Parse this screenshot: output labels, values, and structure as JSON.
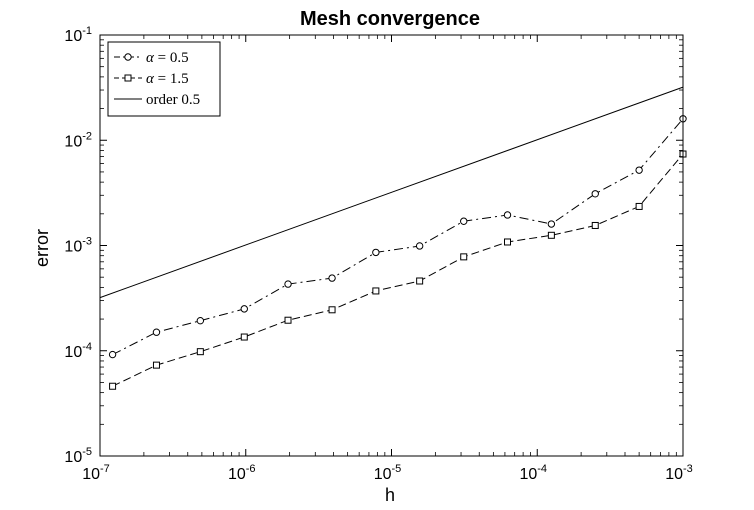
{
  "chart_data": {
    "type": "line",
    "title": "Mesh convergence",
    "xlabel": "h",
    "ylabel": "error",
    "xscale": "log",
    "yscale": "log",
    "xlim": [
      1e-07,
      0.001
    ],
    "ylim": [
      1e-05,
      0.1
    ],
    "x_ticks": [
      {
        "base": "10",
        "exp": "-7",
        "value": 1e-07
      },
      {
        "base": "10",
        "exp": "-6",
        "value": 1e-06
      },
      {
        "base": "10",
        "exp": "-5",
        "value": 1e-05
      },
      {
        "base": "10",
        "exp": "-4",
        "value": 0.0001
      },
      {
        "base": "10",
        "exp": "-3",
        "value": 0.001
      }
    ],
    "y_ticks": [
      {
        "base": "10",
        "exp": "-5",
        "value": 1e-05
      },
      {
        "base": "10",
        "exp": "-4",
        "value": 0.0001
      },
      {
        "base": "10",
        "exp": "-3",
        "value": 0.001
      },
      {
        "base": "10",
        "exp": "-2",
        "value": 0.01
      },
      {
        "base": "10",
        "exp": "-1",
        "value": 0.1
      }
    ],
    "grid": false,
    "legend_position": "top-left",
    "series": [
      {
        "name": "α = 0.5",
        "name_prefix": "α",
        "name_value": "= 0.5",
        "marker": "circle",
        "line": "dash-dot",
        "color": "#000000",
        "x": [
          1.22e-07,
          2.44e-07,
          4.88e-07,
          9.77e-07,
          1.95e-06,
          3.91e-06,
          7.81e-06,
          1.56e-05,
          3.13e-05,
          6.25e-05,
          0.000125,
          0.00025,
          0.0005,
          0.001
        ],
        "y": [
          9.2e-05,
          0.00015,
          0.000193,
          0.00025,
          0.00043,
          0.00049,
          0.00086,
          0.00099,
          0.0017,
          0.00195,
          0.0016,
          0.0031,
          0.0052,
          0.016
        ]
      },
      {
        "name": "α = 1.5",
        "name_prefix": "α",
        "name_value": "= 1.5",
        "marker": "square",
        "line": "dashed",
        "color": "#000000",
        "x": [
          1.22e-07,
          2.44e-07,
          4.88e-07,
          9.77e-07,
          1.95e-06,
          3.91e-06,
          7.81e-06,
          1.56e-05,
          3.13e-05,
          6.25e-05,
          0.000125,
          0.00025,
          0.0005,
          0.001
        ],
        "y": [
          4.6e-05,
          7.3e-05,
          9.8e-05,
          0.000135,
          0.000195,
          0.000245,
          0.00037,
          0.00046,
          0.00078,
          0.00108,
          0.00125,
          0.00155,
          0.00235,
          0.0074
        ]
      },
      {
        "name": "order 0.5",
        "marker": "none",
        "line": "solid",
        "color": "#000000",
        "x": [
          1e-07,
          0.001
        ],
        "y": [
          0.00032,
          0.032
        ]
      }
    ]
  }
}
